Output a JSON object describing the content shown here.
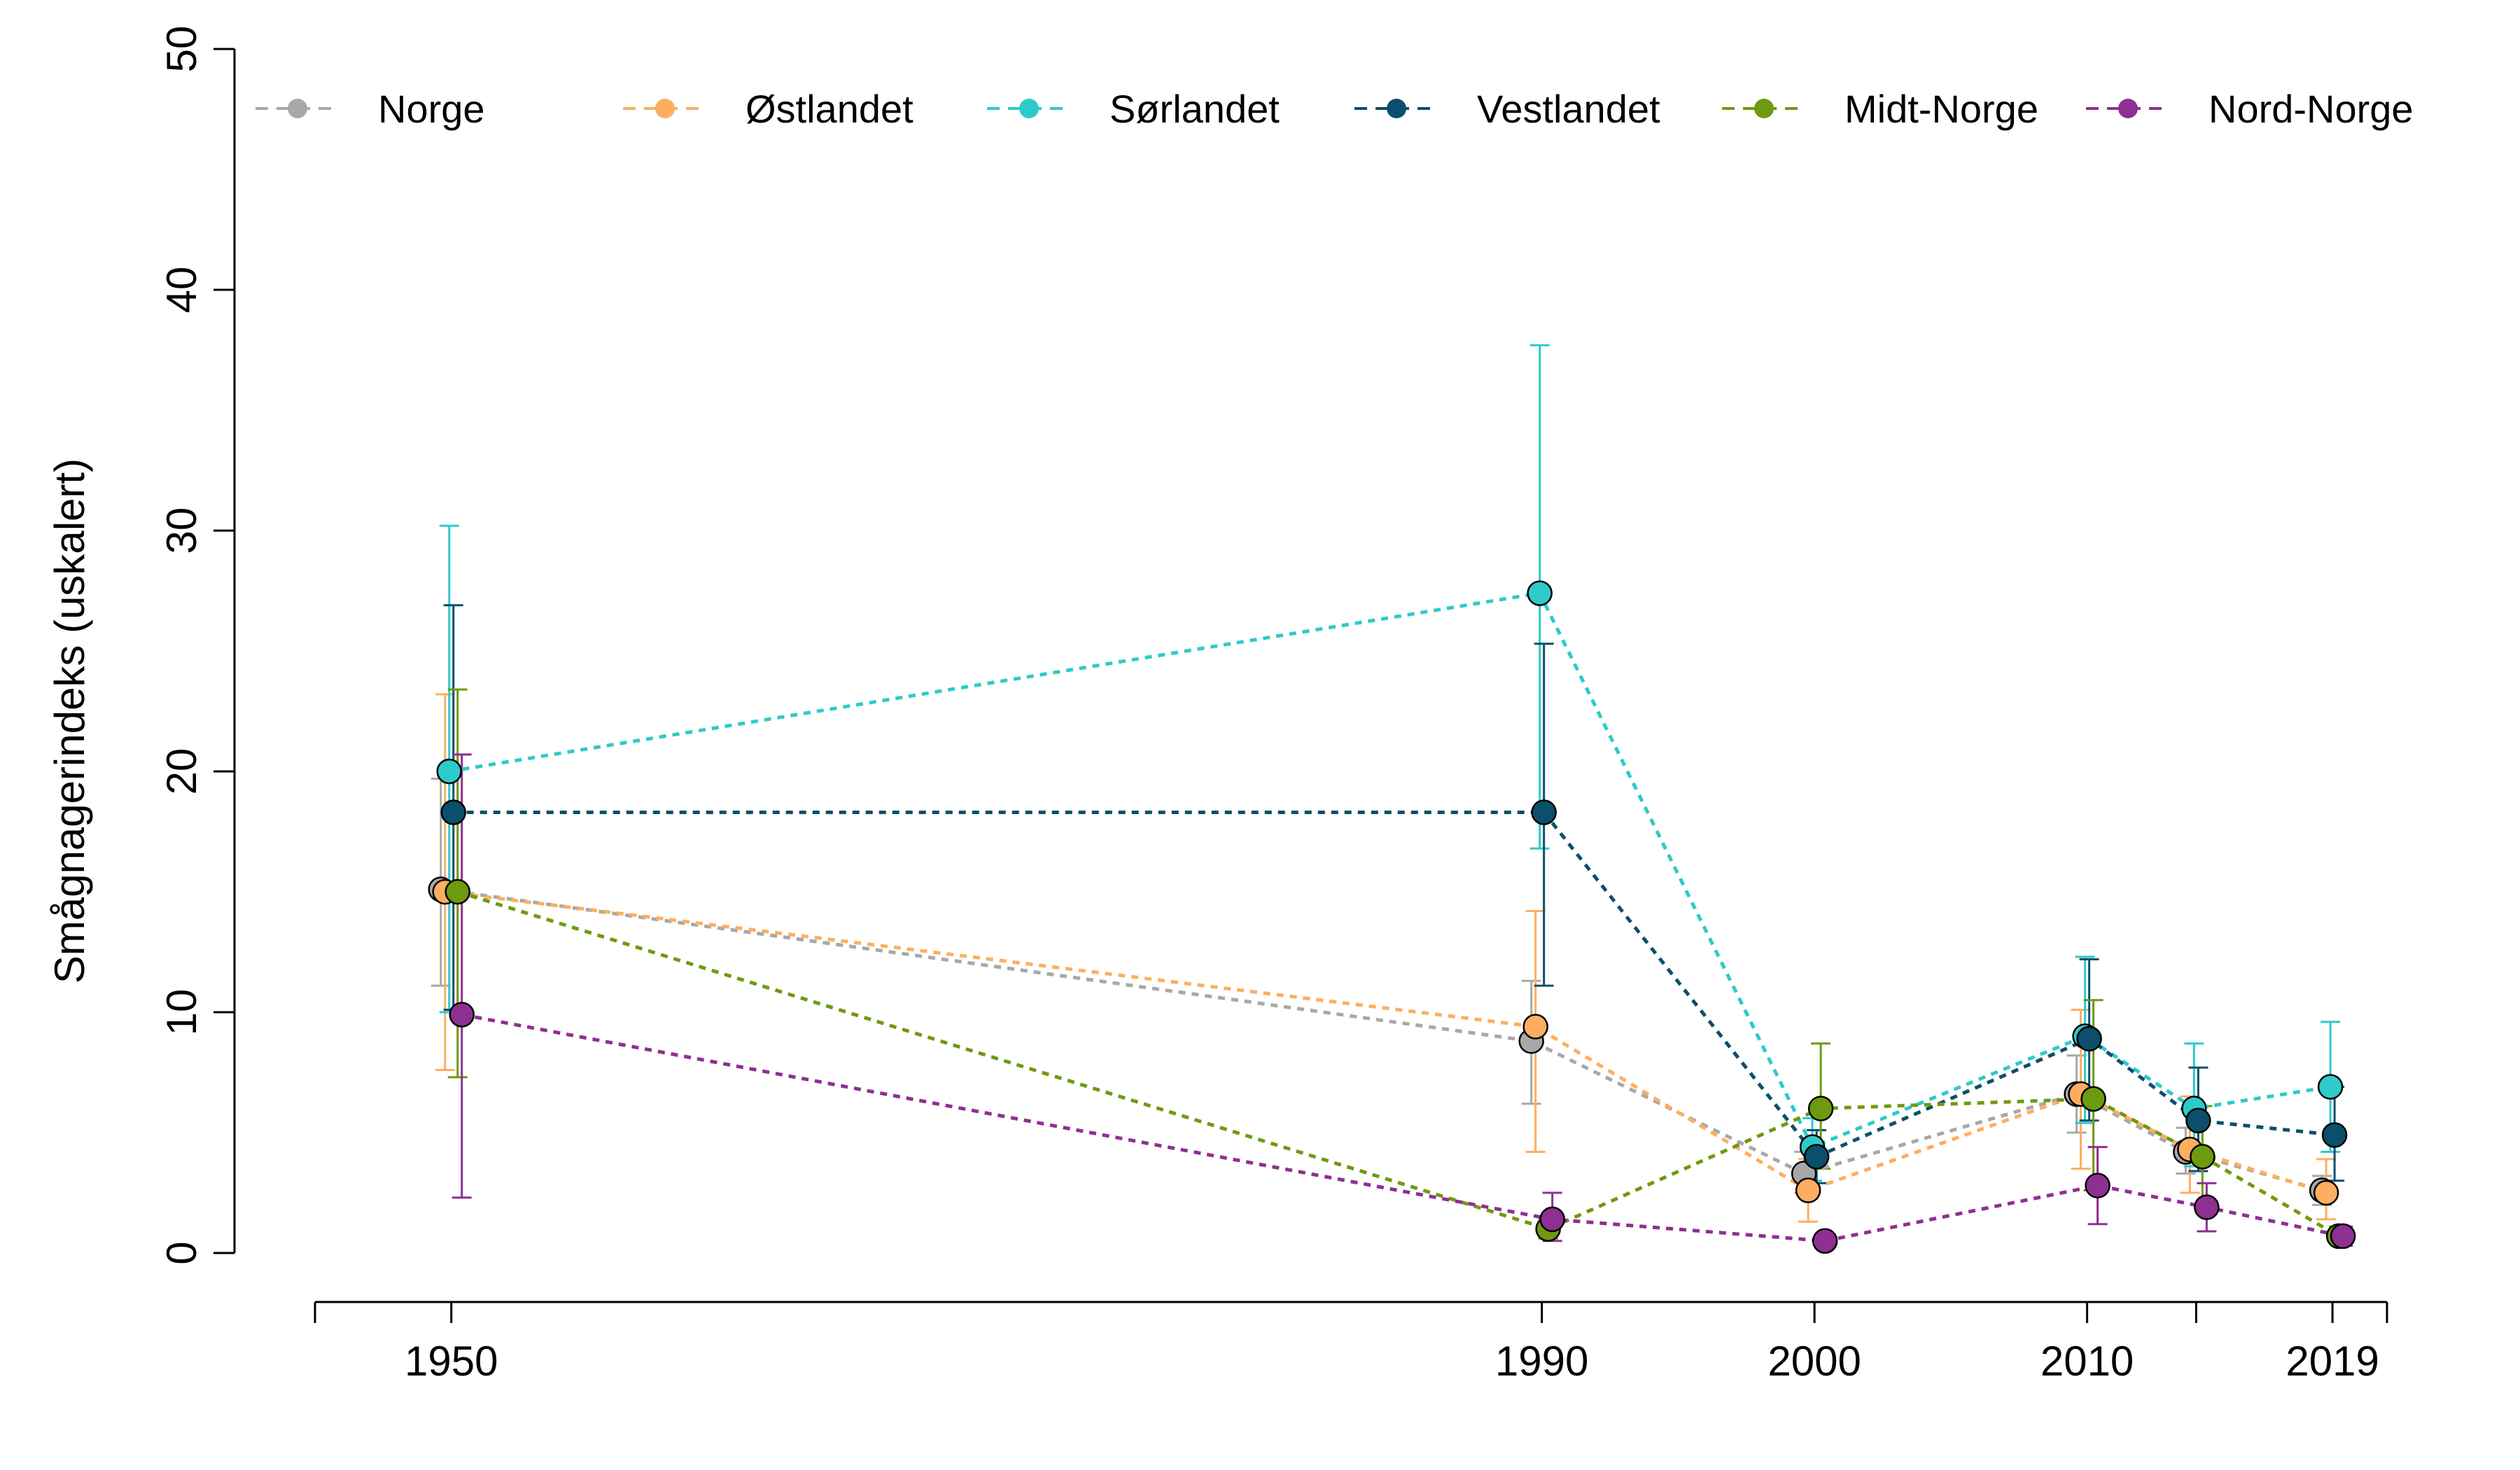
{
  "chart_data": {
    "type": "line",
    "title": "",
    "xlabel": "",
    "ylabel": "Smågnagerindeks (uskalert)",
    "ylim": [
      0,
      50
    ],
    "yticks": [
      0,
      10,
      20,
      30,
      40,
      50
    ],
    "xlim": [
      1945,
      2021
    ],
    "xticks_all": [
      1950,
      1990,
      2000,
      2010,
      2014,
      2019
    ],
    "xtick_labels": [
      {
        "value": 1950,
        "label": "1950"
      },
      {
        "value": 1990,
        "label": "1990"
      },
      {
        "value": 2000,
        "label": "2000"
      },
      {
        "value": 2010,
        "label": "2010"
      },
      {
        "value": 2019,
        "label": "2019"
      }
    ],
    "grid": false,
    "legend_position": "top",
    "line_style": "dotted",
    "x": [
      1950,
      1990,
      2000,
      2010,
      2014,
      2019
    ],
    "series": [
      {
        "name": "Norge",
        "color": "#A8A8A8",
        "values": [
          15.1,
          8.8,
          3.3,
          6.6,
          4.2,
          2.6
        ],
        "lower": [
          11.1,
          6.2,
          2.5,
          5.0,
          3.3,
          2.0
        ],
        "upper": [
          19.7,
          11.3,
          4.2,
          8.2,
          5.2,
          3.2
        ]
      },
      {
        "name": "Østlandet",
        "color": "#FDAE61",
        "values": [
          15.0,
          9.4,
          2.6,
          6.6,
          4.3,
          2.5
        ],
        "lower": [
          7.6,
          4.2,
          1.3,
          3.5,
          2.5,
          1.4
        ],
        "upper": [
          23.2,
          14.2,
          3.9,
          10.1,
          6.5,
          3.9
        ]
      },
      {
        "name": "Sørlandet",
        "color": "#2ECACA",
        "values": [
          20.0,
          27.4,
          4.4,
          9.0,
          6.0,
          6.9
        ],
        "lower": [
          10.0,
          16.8,
          3.0,
          5.4,
          3.6,
          4.2
        ],
        "upper": [
          30.2,
          37.7,
          5.6,
          12.3,
          8.7,
          9.6
        ]
      },
      {
        "name": "Vestlandet",
        "color": "#0B4F6C",
        "values": [
          18.3,
          18.3,
          4.0,
          8.9,
          5.5,
          4.9
        ],
        "lower": [
          10.1,
          11.1,
          2.9,
          5.5,
          3.4,
          3.0
        ],
        "upper": [
          26.9,
          25.3,
          5.1,
          12.2,
          7.7,
          6.9
        ]
      },
      {
        "name": "Midt-Norge",
        "color": "#6E9A0F",
        "values": [
          15.0,
          1.0,
          6.0,
          6.4,
          4.0,
          0.7
        ],
        "lower": [
          7.3,
          0.6,
          3.5,
          2.6,
          2.0,
          0.4
        ],
        "upper": [
          23.4,
          1.4,
          8.7,
          10.5,
          6.1,
          1.1
        ]
      },
      {
        "name": "Nord-Norge",
        "color": "#8E2F92",
        "values": [
          9.9,
          1.4,
          0.5,
          2.8,
          1.9,
          0.7
        ],
        "lower": [
          2.3,
          0.5,
          0.2,
          1.2,
          0.9,
          0.3
        ],
        "upper": [
          20.7,
          2.5,
          0.8,
          4.4,
          2.9,
          1.1
        ]
      }
    ]
  }
}
